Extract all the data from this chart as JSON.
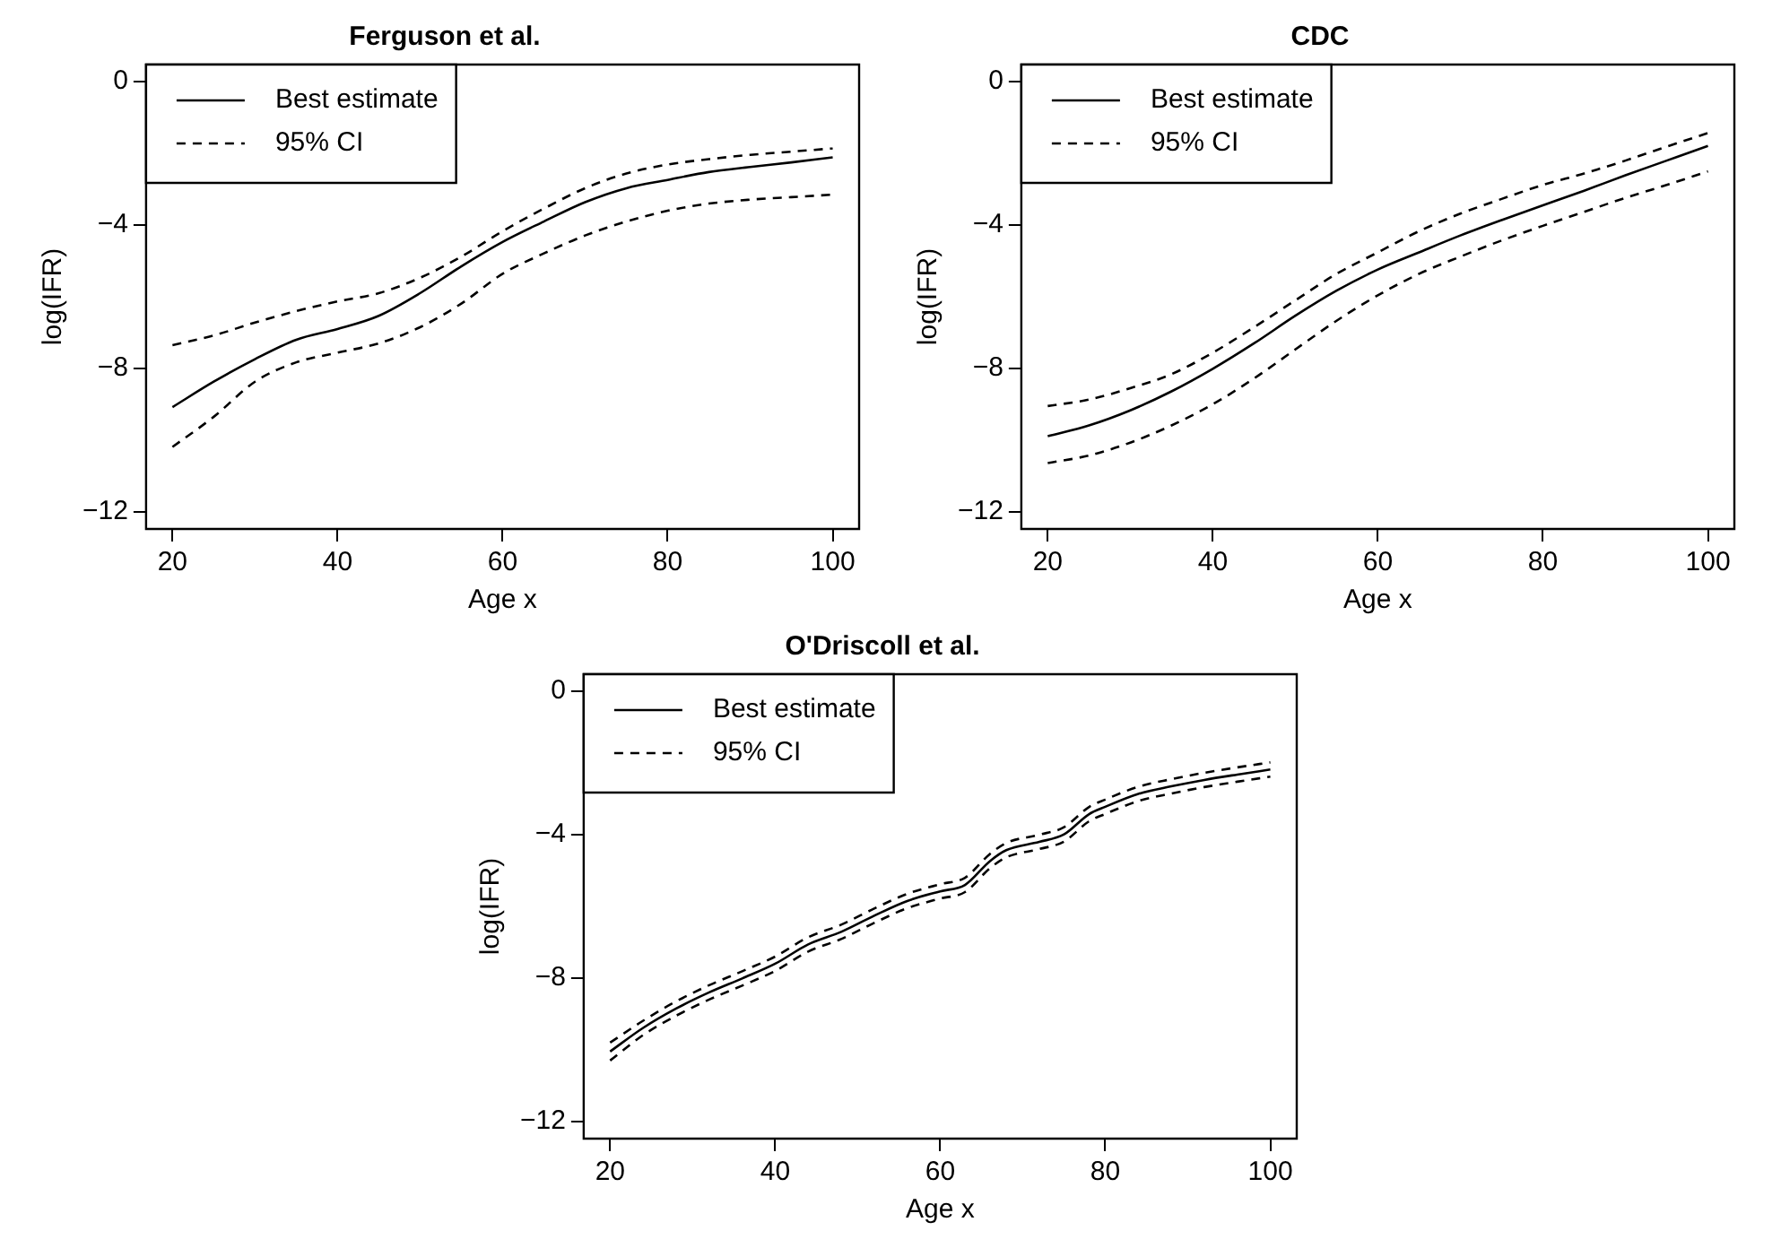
{
  "chart_data": [
    {
      "type": "line",
      "title": "Ferguson et al.",
      "xlabel": "Age x",
      "ylabel": "log(IFR)",
      "xlim": [
        16.8,
        103.2
      ],
      "xticks": [
        20,
        40,
        60,
        80,
        100
      ],
      "ylim": [
        -12.48,
        0.48
      ],
      "yticks": [
        -12,
        -8,
        -4,
        0
      ],
      "grid": false,
      "legend": "top left",
      "marker": "none",
      "x": [
        20,
        25,
        30,
        35,
        40,
        45,
        50,
        55,
        60,
        65,
        70,
        75,
        80,
        85,
        90,
        95,
        100
      ],
      "series": [
        {
          "name": "Best estimate",
          "color": "#000000",
          "line_style": "solid",
          "values": [
            -9.08,
            -8.37,
            -7.74,
            -7.2,
            -6.9,
            -6.53,
            -5.9,
            -5.15,
            -4.47,
            -3.9,
            -3.36,
            -2.97,
            -2.74,
            -2.52,
            -2.38,
            -2.25,
            -2.11
          ]
        },
        {
          "name": "95% CI",
          "color": "#000000",
          "line_style": "dashed",
          "values": [
            -7.35,
            -7.08,
            -6.72,
            -6.4,
            -6.13,
            -5.9,
            -5.47,
            -4.88,
            -4.17,
            -3.54,
            -2.97,
            -2.56,
            -2.31,
            -2.16,
            -2.04,
            -1.95,
            -1.86
          ]
        },
        {
          "color": "#000000",
          "line_style": "dashed",
          "values": [
            -10.19,
            -9.35,
            -8.37,
            -7.83,
            -7.56,
            -7.3,
            -6.85,
            -6.19,
            -5.36,
            -4.79,
            -4.29,
            -3.9,
            -3.6,
            -3.4,
            -3.29,
            -3.22,
            -3.15
          ]
        }
      ]
    },
    {
      "type": "line",
      "title": "CDC",
      "xlabel": "Age x",
      "ylabel": "log(IFR)",
      "xlim": [
        16.8,
        103.2
      ],
      "xticks": [
        20,
        40,
        60,
        80,
        100
      ],
      "ylim": [
        -12.48,
        0.48
      ],
      "yticks": [
        -12,
        -8,
        -4,
        0
      ],
      "grid": false,
      "legend": "top left",
      "marker": "none",
      "x": [
        20,
        25,
        30,
        35,
        40,
        45,
        50,
        55,
        60,
        65,
        70,
        75,
        80,
        85,
        90,
        95,
        100
      ],
      "series": [
        {
          "name": "Best estimate",
          "color": "#000000",
          "line_style": "solid",
          "values": [
            -9.89,
            -9.59,
            -9.17,
            -8.64,
            -8.01,
            -7.3,
            -6.53,
            -5.83,
            -5.24,
            -4.76,
            -4.29,
            -3.86,
            -3.45,
            -3.04,
            -2.61,
            -2.2,
            -1.79
          ]
        },
        {
          "name": "95% CI",
          "color": "#000000",
          "line_style": "dashed",
          "values": [
            -9.05,
            -8.87,
            -8.55,
            -8.16,
            -7.56,
            -6.85,
            -6.1,
            -5.36,
            -4.76,
            -4.17,
            -3.68,
            -3.27,
            -2.88,
            -2.56,
            -2.2,
            -1.81,
            -1.43
          ]
        },
        {
          "color": "#000000",
          "line_style": "dashed",
          "values": [
            -10.64,
            -10.43,
            -10.07,
            -9.59,
            -9.0,
            -8.28,
            -7.47,
            -6.67,
            -5.96,
            -5.36,
            -4.88,
            -4.43,
            -4.02,
            -3.63,
            -3.24,
            -2.88,
            -2.5
          ]
        }
      ]
    },
    {
      "type": "line",
      "title": "O'Driscoll et al.",
      "xlabel": "Age x",
      "ylabel": "log(IFR)",
      "xlim": [
        16.8,
        103.2
      ],
      "xticks": [
        20,
        40,
        60,
        80,
        100
      ],
      "ylim": [
        -12.48,
        0.48
      ],
      "yticks": [
        -12,
        -8,
        -4,
        0
      ],
      "grid": false,
      "legend": "top left",
      "marker": "none",
      "x": [
        20,
        24,
        28,
        32,
        36,
        40,
        44,
        48,
        52,
        56,
        60,
        63,
        66,
        68,
        72,
        75,
        78,
        80,
        84,
        88,
        92,
        96,
        100
      ],
      "series": [
        {
          "name": "Best estimate",
          "color": "#000000",
          "line_style": "solid",
          "values": [
            -10.05,
            -9.39,
            -8.85,
            -8.4,
            -8.01,
            -7.6,
            -7.06,
            -6.71,
            -6.26,
            -5.85,
            -5.58,
            -5.4,
            -4.74,
            -4.43,
            -4.2,
            -3.99,
            -3.43,
            -3.22,
            -2.86,
            -2.65,
            -2.47,
            -2.32,
            -2.18
          ]
        },
        {
          "name": "95% CI",
          "color": "#000000",
          "line_style": "dashed",
          "values": [
            -9.8,
            -9.19,
            -8.65,
            -8.2,
            -7.81,
            -7.4,
            -6.86,
            -6.51,
            -6.06,
            -5.65,
            -5.38,
            -5.2,
            -4.54,
            -4.23,
            -4.0,
            -3.79,
            -3.23,
            -3.02,
            -2.66,
            -2.45,
            -2.27,
            -2.12,
            -1.98
          ]
        },
        {
          "color": "#000000",
          "line_style": "dashed",
          "values": [
            -10.3,
            -9.59,
            -9.05,
            -8.6,
            -8.21,
            -7.8,
            -7.26,
            -6.91,
            -6.46,
            -6.05,
            -5.78,
            -5.6,
            -4.94,
            -4.63,
            -4.4,
            -4.19,
            -3.63,
            -3.42,
            -3.06,
            -2.85,
            -2.67,
            -2.52,
            -2.38
          ]
        }
      ]
    }
  ]
}
